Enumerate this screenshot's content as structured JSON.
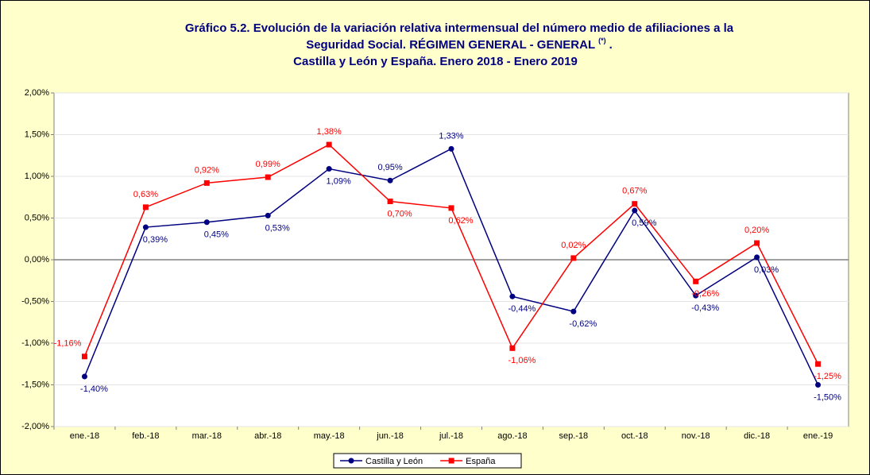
{
  "chart_data": {
    "type": "line",
    "title": [
      "Gráfico 5.2. Evolución de la variación relativa intermensual del número medio de afiliaciones a la",
      "Seguridad Social. RÉGIMEN GENERAL - GENERAL",
      "Castilla y León y España. Enero 2018 - Enero 2019"
    ],
    "title_note": "(*)",
    "title_end": ".",
    "categories": [
      "ene.-18",
      "feb.-18",
      "mar.-18",
      "abr.-18",
      "may.-18",
      "jun.-18",
      "jul.-18",
      "ago.-18",
      "sep.-18",
      "oct.-18",
      "nov.-18",
      "dic.-18",
      "ene.-19"
    ],
    "series": [
      {
        "name": "Castilla y León",
        "color": "#000080",
        "values": [
          -1.4,
          0.39,
          0.45,
          0.53,
          1.09,
          0.95,
          1.33,
          -0.44,
          -0.62,
          0.59,
          -0.43,
          0.03,
          -1.5
        ],
        "value_labels": [
          "-1,40%",
          "0,39%",
          "0,45%",
          "0,53%",
          "1,09%",
          "0,95%",
          "1,33%",
          "-0,44%",
          "-0,62%",
          "0,59%",
          "-0,43%",
          "0,03%",
          "-1,50%"
        ]
      },
      {
        "name": "España",
        "color": "#ff0000",
        "values": [
          -1.16,
          0.63,
          0.92,
          0.99,
          1.38,
          0.7,
          0.62,
          -1.06,
          0.02,
          0.67,
          -0.26,
          0.2,
          -1.25
        ],
        "value_labels": [
          "-1,16%",
          "0,63%",
          "0,92%",
          "0,99%",
          "1,38%",
          "0,70%",
          "0,62%",
          "-1,06%",
          "0,02%",
          "0,67%",
          "-0,26%",
          "0,20%",
          "-1,25%"
        ]
      }
    ],
    "ylim": [
      -2,
      2
    ],
    "yticks": [
      {
        "value": -2,
        "label": "-2,00%"
      },
      {
        "value": -1.5,
        "label": "-1,50%"
      },
      {
        "value": -1,
        "label": "-1,00%"
      },
      {
        "value": -0.5,
        "label": "-0,50%"
      },
      {
        "value": 0,
        "label": "0,00%"
      },
      {
        "value": 0.5,
        "label": "0,50%"
      },
      {
        "value": 1,
        "label": "1,00%"
      },
      {
        "value": 1.5,
        "label": "1,50%"
      },
      {
        "value": 2,
        "label": "2,00%"
      }
    ],
    "grid": true,
    "legend": "bottom"
  }
}
